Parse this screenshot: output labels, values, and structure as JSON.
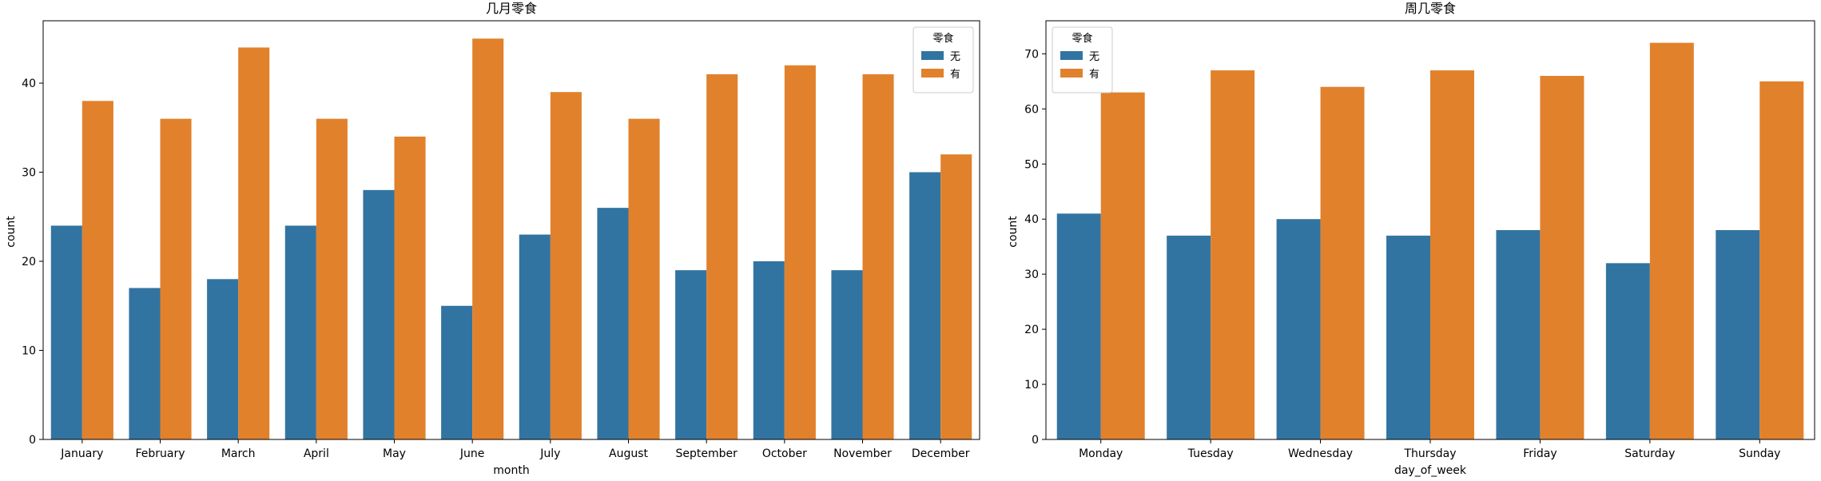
{
  "colors": {
    "no": "#3274a1",
    "yes": "#e1812c",
    "axis": "#000000",
    "legend_border": "#cccccc"
  },
  "chart_data": [
    {
      "type": "bar",
      "title": "几月零食",
      "xlabel": "month",
      "ylabel": "count",
      "ylim": [
        0,
        47
      ],
      "yticks": [
        0,
        10,
        20,
        30,
        40
      ],
      "categories": [
        "January",
        "February",
        "March",
        "April",
        "May",
        "June",
        "July",
        "August",
        "September",
        "October",
        "November",
        "December"
      ],
      "legend": {
        "title": "零食",
        "placement": "top-right"
      },
      "series": [
        {
          "name": "无",
          "values": [
            24,
            17,
            18,
            24,
            28,
            15,
            23,
            26,
            19,
            20,
            19,
            30
          ]
        },
        {
          "name": "有",
          "values": [
            38,
            36,
            44,
            36,
            34,
            45,
            39,
            36,
            41,
            42,
            41,
            32
          ]
        }
      ]
    },
    {
      "type": "bar",
      "title": "周几零食",
      "xlabel": "day_of_week",
      "ylabel": "count",
      "ylim": [
        0,
        76
      ],
      "yticks": [
        0,
        10,
        20,
        30,
        40,
        50,
        60,
        70
      ],
      "categories": [
        "Monday",
        "Tuesday",
        "Wednesday",
        "Thursday",
        "Friday",
        "Saturday",
        "Sunday"
      ],
      "legend": {
        "title": "零食",
        "placement": "top-left"
      },
      "series": [
        {
          "name": "无",
          "values": [
            41,
            37,
            40,
            37,
            38,
            32,
            38
          ]
        },
        {
          "name": "有",
          "values": [
            63,
            67,
            64,
            67,
            66,
            72,
            65
          ]
        }
      ]
    }
  ]
}
